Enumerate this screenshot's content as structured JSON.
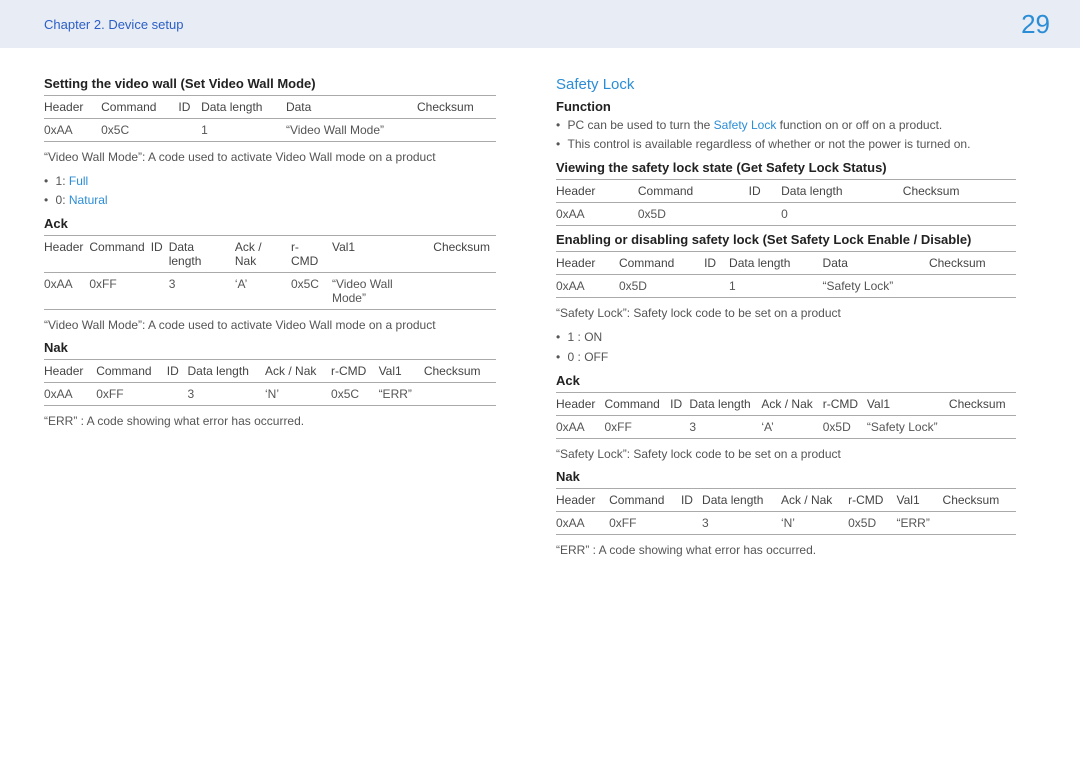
{
  "header": {
    "chapter": "Chapter 2. Device setup",
    "page": "29"
  },
  "colors": {
    "accent": "#2b8dd6",
    "header_link": "#2b5ec7",
    "header_bg": "#e8ecf4",
    "text": "#444444",
    "rule": "#aaaaaa"
  },
  "left": {
    "title": "Setting the video wall (Set Video Wall Mode)",
    "table1": {
      "columns": [
        "Header",
        "Command",
        "ID",
        "Data length",
        "Data",
        "Checksum"
      ],
      "row": [
        "0xAA",
        "0x5C",
        "",
        "1",
        "“Video Wall Mode”",
        ""
      ]
    },
    "note1": "“Video Wall Mode”: A code used to activate Video Wall mode on a product",
    "modes": [
      {
        "prefix": "1: ",
        "label": "Full"
      },
      {
        "prefix": "0: ",
        "label": "Natural"
      }
    ],
    "ack": {
      "title": "Ack",
      "columns": [
        "Header",
        "Command",
        "ID",
        "Data length",
        "Ack / Nak",
        "r-CMD",
        "Val1",
        "Checksum"
      ],
      "row": [
        "0xAA",
        "0xFF",
        "",
        "3",
        "‘A’",
        "0x5C",
        "“Video Wall Mode”",
        ""
      ]
    },
    "note2": "“Video Wall Mode”: A code used to activate Video Wall mode on a product",
    "nak": {
      "title": "Nak",
      "columns": [
        "Header",
        "Command",
        "ID",
        "Data length",
        "Ack / Nak",
        "r-CMD",
        "Val1",
        "Checksum"
      ],
      "row": [
        "0xAA",
        "0xFF",
        "",
        "3",
        "‘N’",
        "0x5C",
        "“ERR”",
        ""
      ]
    },
    "note3": "“ERR” : A code showing what error has occurred."
  },
  "right": {
    "title": "Safety Lock",
    "function_label": "Function",
    "function_bullets": [
      {
        "pre": "PC can be used to turn the ",
        "accent": "Safety Lock",
        "post": " function on or off on a product."
      },
      {
        "pre": "This control is available regardless of whether or not the power is turned on.",
        "accent": "",
        "post": ""
      }
    ],
    "view": {
      "title": "Viewing the safety lock state (Get Safety Lock Status)",
      "columns": [
        "Header",
        "Command",
        "ID",
        "Data length",
        "Checksum"
      ],
      "row": [
        "0xAA",
        "0x5D",
        "",
        "0",
        ""
      ]
    },
    "set": {
      "title": "Enabling or disabling safety lock (Set Safety Lock Enable / Disable)",
      "columns": [
        "Header",
        "Command",
        "ID",
        "Data length",
        "Data",
        "Checksum"
      ],
      "row": [
        "0xAA",
        "0x5D",
        "",
        "1",
        "“Safety Lock”",
        ""
      ]
    },
    "note1": "“Safety Lock”: Safety lock code to be set on a product",
    "states": [
      {
        "text": "1 : ON"
      },
      {
        "text": "0 : OFF"
      }
    ],
    "ack": {
      "title": "Ack",
      "columns": [
        "Header",
        "Command",
        "ID",
        "Data length",
        "Ack / Nak",
        "r-CMD",
        "Val1",
        "Checksum"
      ],
      "row": [
        "0xAA",
        "0xFF",
        "",
        "3",
        "‘A’",
        "0x5D",
        "“Safety Lock”",
        ""
      ]
    },
    "note2": "“Safety Lock”: Safety lock code to be set on a product",
    "nak": {
      "title": "Nak",
      "columns": [
        "Header",
        "Command",
        "ID",
        "Data length",
        "Ack / Nak",
        "r-CMD",
        "Val1",
        "Checksum"
      ],
      "row": [
        "0xAA",
        "0xFF",
        "",
        "3",
        "‘N’",
        "0x5D",
        "“ERR”",
        ""
      ]
    },
    "note3": "“ERR” : A code showing what error has occurred."
  }
}
